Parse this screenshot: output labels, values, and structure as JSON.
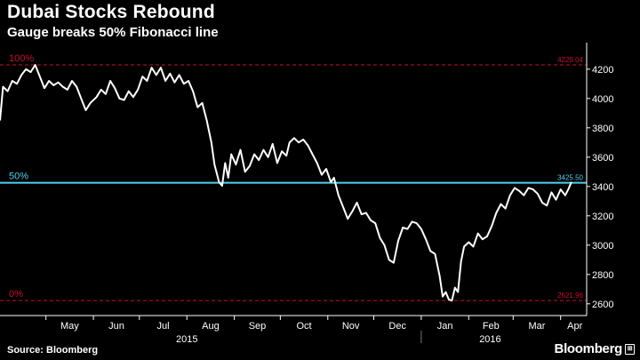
{
  "header": {
    "title": "Dubai Stocks Rebound",
    "subtitle": "Gauge breaks 50% Fibonacci line"
  },
  "footer": {
    "source": "Source: Bloomberg",
    "brand": "Bloomberg",
    "brand_icon": "bloomberg-logo-icon"
  },
  "colors": {
    "background": "#000000",
    "line": "#ffffff",
    "fib_extreme": "#c8102e",
    "fib_mid": "#4fd0f0",
    "axis_text": "#ffffff"
  },
  "chart_data": {
    "type": "line",
    "title": "Dubai Stocks Rebound",
    "subtitle": "Gauge breaks 50% Fibonacci line",
    "xlabel": "",
    "ylabel": "",
    "x_range": [
      "2015-04-01",
      "2016-04-18"
    ],
    "ylim": [
      2520,
      4320
    ],
    "y_axis_side": "right",
    "yticks": [
      2600,
      2800,
      3000,
      3200,
      3400,
      3600,
      3800,
      4000,
      4200
    ],
    "x_ticks": [
      {
        "date": "2015-05-01",
        "label": "May"
      },
      {
        "date": "2015-06-01",
        "label": "Jun"
      },
      {
        "date": "2015-07-01",
        "label": "Jul"
      },
      {
        "date": "2015-08-01",
        "label": "Aug"
      },
      {
        "date": "2015-09-01",
        "label": "Sep"
      },
      {
        "date": "2015-10-01",
        "label": "Oct"
      },
      {
        "date": "2015-11-01",
        "label": "Nov"
      },
      {
        "date": "2015-12-01",
        "label": "Dec"
      },
      {
        "date": "2016-01-01",
        "label": "Jan"
      },
      {
        "date": "2016-02-01",
        "label": "Feb"
      },
      {
        "date": "2016-03-01",
        "label": "Mar"
      },
      {
        "date": "2016-04-01",
        "label": "Apr"
      }
    ],
    "year_labels": [
      {
        "date": "2015-08-01",
        "label": "2015"
      },
      {
        "date": "2016-02-15",
        "label": "2016"
      }
    ],
    "year_separator": "2016-01-01",
    "grid": false,
    "reference_lines": [
      {
        "label": "100%",
        "value": 4229.04,
        "value_label": "4229.04",
        "style": "dashed",
        "color": "#c8102e"
      },
      {
        "label": "50%",
        "value": 3425.5,
        "value_label": "3425.50",
        "style": "solid",
        "color": "#4fd0f0"
      },
      {
        "label": "0%",
        "value": 2621.96,
        "value_label": "2621.96",
        "style": "dashed",
        "color": "#c8102e"
      }
    ],
    "series": [
      {
        "points": [
          [
            "2015-04-01",
            3850
          ],
          [
            "2015-04-03",
            4080
          ],
          [
            "2015-04-06",
            4050
          ],
          [
            "2015-04-09",
            4120
          ],
          [
            "2015-04-12",
            4100
          ],
          [
            "2015-04-15",
            4160
          ],
          [
            "2015-04-18",
            4200
          ],
          [
            "2015-04-21",
            4180
          ],
          [
            "2015-04-24",
            4229
          ],
          [
            "2015-04-27",
            4150
          ],
          [
            "2015-04-30",
            4070
          ],
          [
            "2015-05-03",
            4120
          ],
          [
            "2015-05-06",
            4090
          ],
          [
            "2015-05-09",
            4110
          ],
          [
            "2015-05-12",
            4080
          ],
          [
            "2015-05-15",
            4060
          ],
          [
            "2015-05-18",
            4120
          ],
          [
            "2015-05-21",
            4080
          ],
          [
            "2015-05-24",
            4000
          ],
          [
            "2015-05-27",
            3920
          ],
          [
            "2015-05-30",
            3970
          ],
          [
            "2015-06-03",
            4010
          ],
          [
            "2015-06-06",
            4060
          ],
          [
            "2015-06-09",
            4030
          ],
          [
            "2015-06-12",
            4120
          ],
          [
            "2015-06-15",
            4070
          ],
          [
            "2015-06-18",
            4000
          ],
          [
            "2015-06-21",
            3990
          ],
          [
            "2015-06-24",
            4050
          ],
          [
            "2015-06-27",
            4010
          ],
          [
            "2015-06-30",
            4060
          ],
          [
            "2015-07-03",
            4150
          ],
          [
            "2015-07-06",
            4120
          ],
          [
            "2015-07-09",
            4210
          ],
          [
            "2015-07-12",
            4160
          ],
          [
            "2015-07-15",
            4210
          ],
          [
            "2015-07-18",
            4120
          ],
          [
            "2015-07-21",
            4170
          ],
          [
            "2015-07-24",
            4110
          ],
          [
            "2015-07-27",
            4160
          ],
          [
            "2015-07-30",
            4100
          ],
          [
            "2015-08-02",
            4120
          ],
          [
            "2015-08-05",
            4050
          ],
          [
            "2015-08-08",
            3940
          ],
          [
            "2015-08-11",
            3970
          ],
          [
            "2015-08-14",
            3850
          ],
          [
            "2015-08-17",
            3700
          ],
          [
            "2015-08-19",
            3550
          ],
          [
            "2015-08-22",
            3430
          ],
          [
            "2015-08-24",
            3405
          ],
          [
            "2015-08-26",
            3560
          ],
          [
            "2015-08-28",
            3460
          ],
          [
            "2015-08-30",
            3620
          ],
          [
            "2015-09-02",
            3550
          ],
          [
            "2015-09-05",
            3650
          ],
          [
            "2015-09-08",
            3500
          ],
          [
            "2015-09-11",
            3540
          ],
          [
            "2015-09-14",
            3620
          ],
          [
            "2015-09-17",
            3580
          ],
          [
            "2015-09-20",
            3650
          ],
          [
            "2015-09-23",
            3600
          ],
          [
            "2015-09-26",
            3690
          ],
          [
            "2015-09-29",
            3560
          ],
          [
            "2015-10-02",
            3640
          ],
          [
            "2015-10-05",
            3610
          ],
          [
            "2015-10-07",
            3700
          ],
          [
            "2015-10-10",
            3730
          ],
          [
            "2015-10-13",
            3700
          ],
          [
            "2015-10-16",
            3720
          ],
          [
            "2015-10-19",
            3680
          ],
          [
            "2015-10-22",
            3620
          ],
          [
            "2015-10-25",
            3560
          ],
          [
            "2015-10-28",
            3480
          ],
          [
            "2015-10-31",
            3520
          ],
          [
            "2015-11-03",
            3430
          ],
          [
            "2015-11-05",
            3460
          ],
          [
            "2015-11-08",
            3340
          ],
          [
            "2015-11-11",
            3260
          ],
          [
            "2015-11-14",
            3180
          ],
          [
            "2015-11-17",
            3230
          ],
          [
            "2015-11-20",
            3290
          ],
          [
            "2015-11-23",
            3210
          ],
          [
            "2015-11-26",
            3220
          ],
          [
            "2015-11-29",
            3170
          ],
          [
            "2015-12-02",
            3150
          ],
          [
            "2015-12-05",
            3050
          ],
          [
            "2015-12-08",
            3000
          ],
          [
            "2015-12-11",
            2900
          ],
          [
            "2015-12-14",
            2880
          ],
          [
            "2015-12-17",
            3030
          ],
          [
            "2015-12-20",
            3120
          ],
          [
            "2015-12-23",
            3110
          ],
          [
            "2015-12-26",
            3160
          ],
          [
            "2015-12-29",
            3150
          ],
          [
            "2016-01-01",
            3110
          ],
          [
            "2016-01-04",
            3040
          ],
          [
            "2016-01-07",
            2960
          ],
          [
            "2016-01-10",
            2940
          ],
          [
            "2016-01-13",
            2790
          ],
          [
            "2016-01-15",
            2650
          ],
          [
            "2016-01-17",
            2680
          ],
          [
            "2016-01-19",
            2630
          ],
          [
            "2016-01-21",
            2622
          ],
          [
            "2016-01-23",
            2710
          ],
          [
            "2016-01-25",
            2680
          ],
          [
            "2016-01-27",
            2890
          ],
          [
            "2016-01-29",
            2990
          ],
          [
            "2016-02-01",
            3020
          ],
          [
            "2016-02-04",
            2990
          ],
          [
            "2016-02-07",
            3080
          ],
          [
            "2016-02-10",
            3040
          ],
          [
            "2016-02-13",
            3060
          ],
          [
            "2016-02-16",
            3130
          ],
          [
            "2016-02-19",
            3220
          ],
          [
            "2016-02-22",
            3280
          ],
          [
            "2016-02-25",
            3250
          ],
          [
            "2016-02-28",
            3340
          ],
          [
            "2016-03-02",
            3390
          ],
          [
            "2016-03-05",
            3370
          ],
          [
            "2016-03-08",
            3340
          ],
          [
            "2016-03-11",
            3390
          ],
          [
            "2016-03-14",
            3380
          ],
          [
            "2016-03-17",
            3350
          ],
          [
            "2016-03-20",
            3290
          ],
          [
            "2016-03-23",
            3270
          ],
          [
            "2016-03-26",
            3360
          ],
          [
            "2016-03-29",
            3310
          ],
          [
            "2016-04-01",
            3380
          ],
          [
            "2016-04-04",
            3340
          ],
          [
            "2016-04-06",
            3380
          ],
          [
            "2016-04-08",
            3430
          ]
        ]
      }
    ]
  }
}
